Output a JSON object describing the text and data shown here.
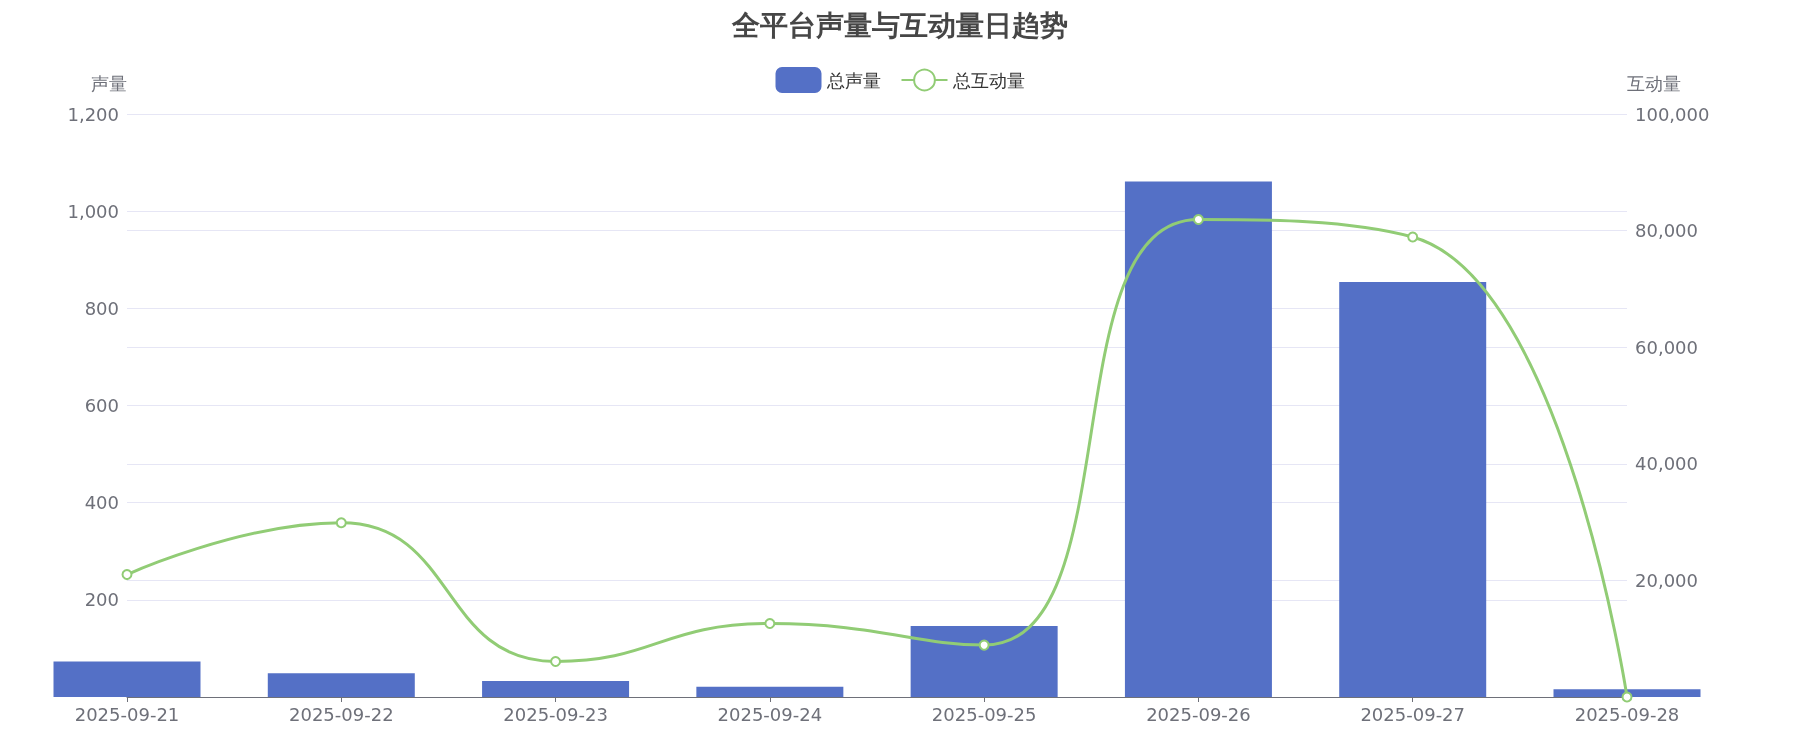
{
  "chart_data": {
    "type": "bar",
    "title": "全平台声量与互动量日趋势",
    "categories": [
      "2025-09-21",
      "2025-09-22",
      "2025-09-23",
      "2025-09-24",
      "2025-09-25",
      "2025-09-26",
      "2025-09-27",
      "2025-09-28"
    ],
    "series": [
      {
        "name": "总声量",
        "color": "#5470c6",
        "values": [
          73,
          49,
          33,
          21,
          146,
          1061,
          854,
          16
        ]
      },
      {
        "name": "总互动量",
        "type": "line",
        "axis": "y2",
        "color": "#91cc75",
        "values": [
          21000,
          29900,
          6100,
          12600,
          8900,
          81900,
          78900,
          0
        ]
      }
    ],
    "ylabel": "声量",
    "y2label": "互动量",
    "ylim": [
      0,
      1200
    ],
    "yticks": [
      {
        "value": 0,
        "label": null
      },
      200,
      400,
      600,
      800,
      {
        "value": 1000,
        "label": "1,000"
      },
      {
        "value": 1200,
        "label": "1,200"
      }
    ],
    "y2lim": [
      0,
      100000
    ],
    "y2ticks": [
      {
        "value": 0,
        "label": null
      },
      {
        "value": 20000,
        "label": "20,000"
      },
      {
        "value": 40000,
        "label": "40,000"
      },
      {
        "value": 60000,
        "label": "60,000"
      },
      {
        "value": 80000,
        "label": "80,000"
      },
      {
        "value": 100000,
        "label": "100,000"
      }
    ],
    "grid": true,
    "legend": "top",
    "marker": "circle",
    "line_style": "solid"
  }
}
